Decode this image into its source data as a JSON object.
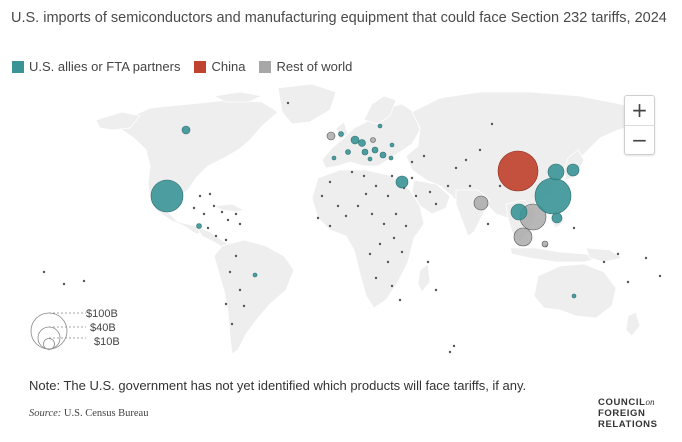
{
  "title": "U.S. imports of semiconductors and manufacturing equipment that could face Section 232 tariffs, 2024",
  "legend": {
    "items": [
      {
        "label": "U.S. allies or FTA partners",
        "color": "#3a9396"
      },
      {
        "label": "China",
        "color": "#c0432f"
      },
      {
        "label": "Rest of world",
        "color": "#a7a7a7"
      }
    ]
  },
  "zoom": {
    "in_label": "+",
    "out_label": "−"
  },
  "size_legend": {
    "labels": [
      "$100B",
      "$40B",
      "$10B"
    ]
  },
  "note": "Note: The U.S. government has not yet identified which products will face tariffs, if any.",
  "source": {
    "label": "Source:",
    "text": "U.S. Census Bureau"
  },
  "logo": {
    "line1": "COUNCIL",
    "on": "on",
    "line2": "FOREIGN",
    "line3": "RELATIONS"
  },
  "colors": {
    "land": "#eeeeee",
    "ocean": "#ffffff",
    "border": "#ffffff",
    "small_dot": "#555555"
  }
}
